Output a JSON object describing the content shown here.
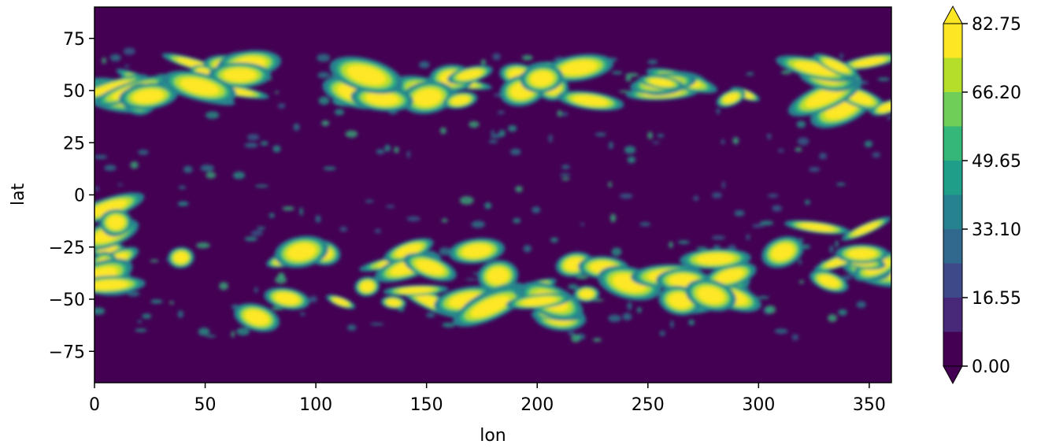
{
  "chart_data": {
    "type": "heatmap",
    "subtype": "filled-contour",
    "xlabel": "lon",
    "ylabel": "lat",
    "xlim": [
      0,
      360
    ],
    "ylim": [
      -90,
      90
    ],
    "x_ticks": [
      0,
      50,
      100,
      150,
      200,
      250,
      300,
      350
    ],
    "y_ticks": [
      -75,
      -50,
      -25,
      0,
      25,
      50,
      75
    ],
    "colormap": "viridis",
    "colorbar": {
      "levels": [
        0.0,
        8.275,
        16.55,
        24.825,
        33.1,
        41.375,
        49.65,
        57.925,
        66.2,
        74.475,
        82.75
      ],
      "tick_labels": [
        "0.00",
        "16.55",
        "33.10",
        "49.65",
        "66.20",
        "82.75"
      ],
      "extend": "both",
      "colors": [
        "#440154",
        "#482878",
        "#3e4989",
        "#31688e",
        "#26828e",
        "#1f9e89",
        "#35b779",
        "#6ece58",
        "#b5de2b",
        "#fde725"
      ]
    },
    "high_regions": [
      {
        "lon": [
          0,
          25
        ],
        "lat": [
          45,
          55
        ]
      },
      {
        "lon": [
          20,
          80
        ],
        "lat": [
          45,
          65
        ]
      },
      {
        "lon": [
          100,
          165
        ],
        "lat": [
          45,
          60
        ]
      },
      {
        "lon": [
          165,
          225
        ],
        "lat": [
          45,
          65
        ]
      },
      {
        "lon": [
          250,
          300
        ],
        "lat": [
          45,
          55
        ]
      },
      {
        "lon": [
          325,
          360
        ],
        "lat": [
          40,
          65
        ]
      },
      {
        "lon": [
          0,
          10
        ],
        "lat": [
          -45,
          -5
        ]
      },
      {
        "lon": [
          35,
          140
        ],
        "lat": [
          -65,
          -25
        ]
      },
      {
        "lon": [
          140,
          185
        ],
        "lat": [
          -55,
          -25
        ]
      },
      {
        "lon": [
          190,
          245
        ],
        "lat": [
          -60,
          -30
        ]
      },
      {
        "lon": [
          255,
          295
        ],
        "lat": [
          -55,
          -25
        ]
      },
      {
        "lon": [
          310,
          360
        ],
        "lat": [
          -45,
          -10
        ]
      }
    ]
  }
}
